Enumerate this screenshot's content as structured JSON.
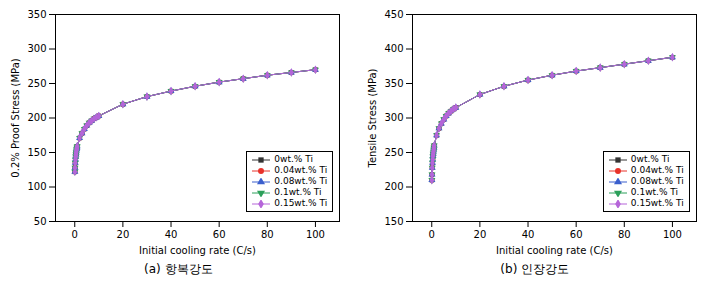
{
  "chart_data": [
    {
      "type": "line",
      "title": "(a) 항복강도",
      "x_label": "Initial cooling rate (C/s)",
      "y_label": "0.2% Proof Stress (MPa)",
      "xlim": [
        -8,
        110
      ],
      "xticks": [
        0,
        20,
        40,
        60,
        80,
        100
      ],
      "ylim": [
        50,
        350
      ],
      "yticks": [
        50,
        100,
        150,
        200,
        250,
        300,
        350
      ],
      "legend": "bottom-right",
      "x": [
        0.05,
        0.1,
        0.2,
        0.3,
        0.4,
        0.5,
        0.6,
        0.7,
        0.8,
        0.9,
        1,
        2,
        3,
        4,
        5,
        6,
        7,
        8,
        9,
        10,
        20,
        30,
        40,
        50,
        60,
        70,
        80,
        90,
        100
      ],
      "series": [
        {
          "name": "0wt.% Ti",
          "color": "#333333",
          "marker": "square",
          "values": [
            122,
            128,
            135,
            140,
            144,
            147,
            150,
            153,
            155,
            157,
            159,
            171,
            178,
            184,
            189,
            193,
            196,
            199,
            201,
            203,
            220,
            231,
            239,
            246,
            252,
            257,
            262,
            266,
            270
          ]
        },
        {
          "name": "0.04wt.% Ti",
          "color": "#e8322a",
          "marker": "circle",
          "values": [
            122,
            128,
            135,
            140,
            144,
            147,
            150,
            153,
            155,
            157,
            159,
            171,
            178,
            184,
            189,
            193,
            196,
            199,
            201,
            203,
            220,
            231,
            239,
            246,
            252,
            257,
            262,
            266,
            270
          ]
        },
        {
          "name": "0.08wt.% Ti",
          "color": "#3a5fcd",
          "marker": "triangle-up",
          "values": [
            122,
            128,
            135,
            140,
            144,
            147,
            150,
            153,
            155,
            157,
            159,
            171,
            178,
            184,
            189,
            193,
            196,
            199,
            201,
            203,
            220,
            231,
            239,
            246,
            252,
            257,
            262,
            266,
            270
          ]
        },
        {
          "name": "0.1wt.% Ti",
          "color": "#2ca05a",
          "marker": "triangle-down",
          "values": [
            122,
            128,
            135,
            140,
            144,
            147,
            150,
            153,
            155,
            157,
            159,
            171,
            178,
            184,
            189,
            193,
            196,
            199,
            201,
            203,
            220,
            231,
            239,
            246,
            252,
            257,
            262,
            266,
            270
          ]
        },
        {
          "name": "0.15wt.% Ti",
          "color": "#b565d9",
          "marker": "diamond",
          "values": [
            122,
            128,
            135,
            140,
            144,
            147,
            150,
            153,
            155,
            157,
            159,
            171,
            178,
            184,
            189,
            193,
            196,
            199,
            201,
            203,
            220,
            231,
            239,
            246,
            252,
            257,
            262,
            266,
            270
          ]
        }
      ]
    },
    {
      "type": "line",
      "title": "(b) 인장강도",
      "x_label": "Initial cooling rate (C/s)",
      "y_label": "Tensile Stress (MPa)",
      "xlim": [
        -8,
        110
      ],
      "xticks": [
        0,
        20,
        40,
        60,
        80,
        100
      ],
      "ylim": [
        150,
        450
      ],
      "yticks": [
        150,
        200,
        250,
        300,
        350,
        400,
        450
      ],
      "legend": "bottom-right",
      "x": [
        0.05,
        0.1,
        0.2,
        0.3,
        0.4,
        0.5,
        0.6,
        0.7,
        0.8,
        0.9,
        1,
        2,
        3,
        4,
        5,
        6,
        7,
        8,
        9,
        10,
        20,
        30,
        40,
        50,
        60,
        70,
        80,
        90,
        100
      ],
      "series": [
        {
          "name": "0wt.% Ti",
          "color": "#333333",
          "marker": "square",
          "values": [
            210,
            218,
            228,
            235,
            240,
            245,
            248,
            251,
            254,
            257,
            260,
            275,
            285,
            292,
            298,
            303,
            307,
            310,
            313,
            315,
            334,
            346,
            355,
            362,
            368,
            373,
            378,
            383,
            388
          ]
        },
        {
          "name": "0.04wt.% Ti",
          "color": "#e8322a",
          "marker": "circle",
          "values": [
            210,
            218,
            228,
            235,
            240,
            245,
            248,
            251,
            254,
            257,
            260,
            275,
            285,
            292,
            298,
            303,
            307,
            310,
            313,
            315,
            334,
            346,
            355,
            362,
            368,
            373,
            378,
            383,
            388
          ]
        },
        {
          "name": "0.08wt.% Ti",
          "color": "#3a5fcd",
          "marker": "triangle-up",
          "values": [
            210,
            218,
            228,
            235,
            240,
            245,
            248,
            251,
            254,
            257,
            260,
            275,
            285,
            292,
            298,
            303,
            307,
            310,
            313,
            315,
            334,
            346,
            355,
            362,
            368,
            373,
            378,
            383,
            388
          ]
        },
        {
          "name": "0.1wt.% Ti",
          "color": "#2ca05a",
          "marker": "triangle-down",
          "values": [
            210,
            218,
            228,
            235,
            240,
            245,
            248,
            251,
            254,
            257,
            260,
            275,
            285,
            292,
            298,
            303,
            307,
            310,
            313,
            315,
            334,
            346,
            355,
            362,
            368,
            373,
            378,
            383,
            388
          ]
        },
        {
          "name": "0.15wt.% Ti",
          "color": "#b565d9",
          "marker": "diamond",
          "values": [
            210,
            218,
            228,
            235,
            240,
            245,
            248,
            251,
            254,
            257,
            260,
            275,
            285,
            292,
            298,
            303,
            307,
            310,
            313,
            315,
            334,
            346,
            355,
            362,
            368,
            373,
            378,
            383,
            388
          ]
        }
      ]
    }
  ]
}
